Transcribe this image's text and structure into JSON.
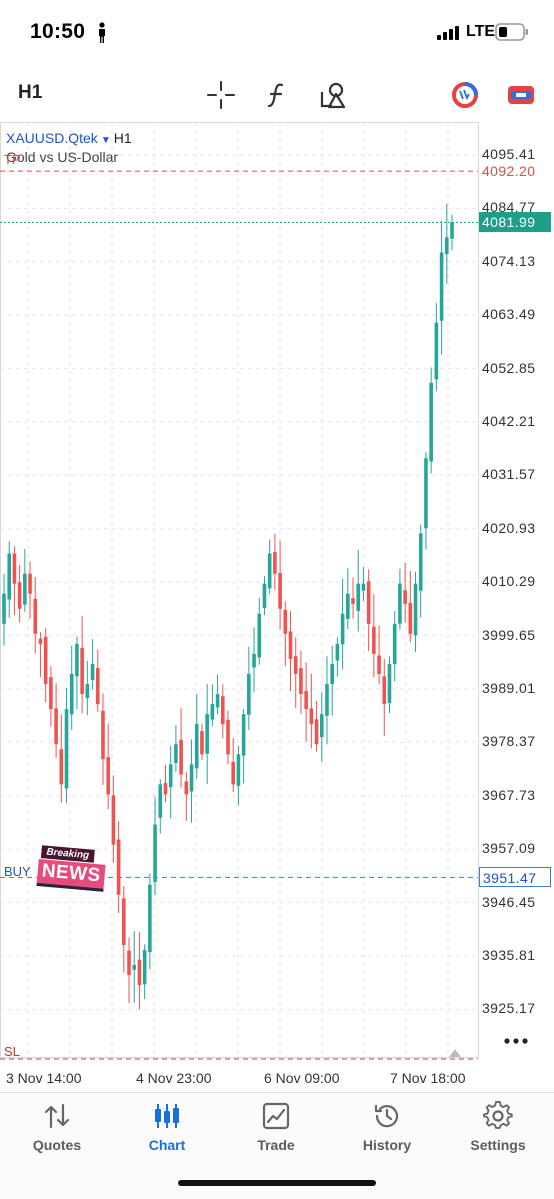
{
  "status_bar": {
    "time": "10:50",
    "network": "LTE"
  },
  "toolbar": {
    "timeframe": "H1",
    "icons": [
      "crosshair-icon",
      "indicator-icon",
      "objects-icon",
      "one-click-trading-icon",
      "trade-panel-icon"
    ]
  },
  "chart": {
    "symbol": "XAUUSD.Qtek",
    "symbol_arrow": "▼",
    "period": "H1",
    "description": "Gold vs US-Dollar",
    "price_ticks": [
      "4095.41",
      "4084.77",
      "4074.13",
      "4063.49",
      "4052.85",
      "4042.21",
      "4031.57",
      "4020.93",
      "4010.29",
      "3999.65",
      "3989.01",
      "3978.37",
      "3967.73",
      "3957.09",
      "3946.45",
      "3935.81",
      "3925.17"
    ],
    "time_ticks": [
      "3 Nov 14:00",
      "4 Nov 23:00",
      "6 Nov 09:00",
      "7 Nov 18:00"
    ],
    "levels": {
      "tp_label": "TP",
      "tp_price": "4092.20",
      "bid_price": "4081.99",
      "buy_label": "BUY",
      "buy_price": "3951.47",
      "sl_label": "SL"
    },
    "news_badge": {
      "top": "Breaking",
      "main": "NEWS"
    },
    "colors": {
      "bull": "#26a69a",
      "bear": "#ef5350",
      "tp_line": "#d94f4f",
      "bid_line": "#1f9e8c",
      "buy_line": "#3b82c4",
      "sl_line": "#c0392b"
    }
  },
  "chart_data": {
    "type": "candlestick",
    "symbol": "XAUUSD.Qtek",
    "timeframe": "H1",
    "ylim": [
      3920,
      4100
    ],
    "x_ticks": [
      "3 Nov 14:00",
      "4 Nov 23:00",
      "6 Nov 09:00",
      "7 Nov 18:00"
    ],
    "close_path": [
      4008,
      4016,
      4010,
      4005,
      4012,
      4008,
      4000,
      3998,
      3990,
      3985,
      3978,
      3970,
      3985,
      3992,
      3998,
      3988,
      3990,
      3994,
      3986,
      3975,
      3968,
      3958,
      3948,
      3938,
      3932,
      3934,
      3930,
      3937,
      3950,
      3962,
      3970,
      3968,
      3974,
      3978,
      3972,
      3968,
      3974,
      3982,
      3976,
      3984,
      3986,
      3988,
      3982,
      3976,
      3970,
      3976,
      3984,
      3992,
      3996,
      4004,
      4010,
      4016,
      4012,
      4005,
      4000,
      3995,
      3992,
      3988,
      3985,
      3982,
      3978,
      3984,
      3990,
      3994,
      3998,
      4004,
      4008,
      4006,
      4010,
      4010,
      4002,
      3996,
      3992,
      3986,
      3994,
      4002,
      4010,
      4006,
      4000,
      4010,
      4020,
      4035,
      4050,
      4062,
      4076,
      4079,
      4082
    ],
    "levels": {
      "TP": 4092.2,
      "BUY": 3951.47,
      "current": 4081.99
    }
  }
}
